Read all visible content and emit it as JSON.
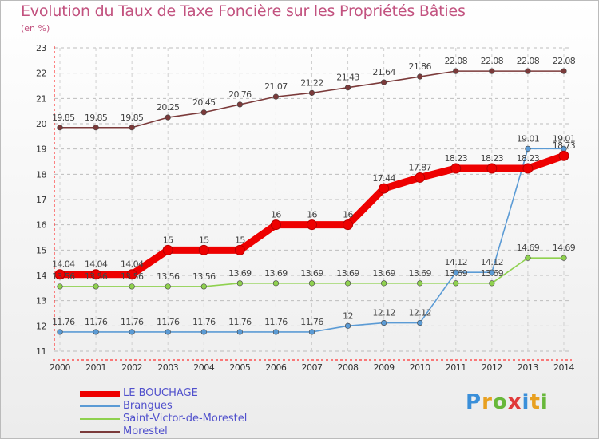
{
  "chart_data": {
    "type": "line",
    "title": "Evolution du Taux de Taxe Foncière sur les Propriétés Bâties",
    "ylabel": "(en %)",
    "categories": [
      "2000",
      "2001",
      "2002",
      "2003",
      "2004",
      "2005",
      "2006",
      "2007",
      "2008",
      "2009",
      "2010",
      "2011",
      "2012",
      "2013",
      "2014"
    ],
    "ylim": [
      11,
      23
    ],
    "yticks": [
      "11",
      "12",
      "13",
      "14",
      "15",
      "16",
      "17",
      "18",
      "19",
      "20",
      "21",
      "22",
      "23"
    ],
    "series": [
      {
        "name": "LE BOUCHAGE",
        "color": "#ee0000",
        "values": [
          14.04,
          14.04,
          14.04,
          15,
          15,
          15,
          16,
          16,
          16,
          17.44,
          17.87,
          18.23,
          18.23,
          18.23,
          18.73
        ],
        "labels": [
          "14.04",
          "14.04",
          "14.04",
          "15",
          "15",
          "15",
          "16",
          "16",
          "16",
          "17.44",
          "17.87",
          "18.23",
          "18.23",
          "18.23",
          "18.73"
        ]
      },
      {
        "name": "Brangues",
        "color": "#5b9bd5",
        "values": [
          11.76,
          11.76,
          11.76,
          11.76,
          11.76,
          11.76,
          11.76,
          11.76,
          12,
          12.12,
          12.12,
          14.12,
          14.12,
          19.01,
          19.01
        ],
        "labels": [
          "11.76",
          "11.76",
          "11.76",
          "11.76",
          "11.76",
          "11.76",
          "11.76",
          "11.76",
          "12",
          "12.12",
          "12.12",
          "14.12",
          "14.12",
          "19.01",
          "19.01"
        ]
      },
      {
        "name": "Saint-Victor-de-Morestel",
        "color": "#8fd14f",
        "values": [
          13.56,
          13.56,
          13.56,
          13.56,
          13.56,
          13.69,
          13.69,
          13.69,
          13.69,
          13.69,
          13.69,
          13.69,
          13.69,
          14.69,
          14.69
        ],
        "labels": [
          "13.56",
          "13.56",
          "13.56",
          "13.56",
          "13.56",
          "13.69",
          "13.69",
          "13.69",
          "13.69",
          "13.69",
          "13.69",
          "13.69",
          "13.69",
          "14.69",
          "14.69"
        ]
      },
      {
        "name": "Morestel",
        "color": "#7b3a3a",
        "values": [
          19.85,
          19.85,
          19.85,
          20.25,
          20.45,
          20.76,
          21.07,
          21.22,
          21.43,
          21.64,
          21.86,
          22.08,
          22.08,
          22.08,
          22.08
        ],
        "labels": [
          "19.85",
          "19.85",
          "19.85",
          "20.25",
          "20.45",
          "20.76",
          "21.07",
          "21.22",
          "21.43",
          "21.64",
          "21.86",
          "22.08",
          "22.08",
          "22.08",
          "22.08"
        ]
      }
    ]
  },
  "logo": {
    "letters": [
      "P",
      "r",
      "o",
      "x",
      "i",
      "t",
      "i"
    ],
    "colors": [
      "#3a8fd9",
      "#e8a020",
      "#68b83a",
      "#e03a3a",
      "#3a8fd9",
      "#e8a020",
      "#68b83a"
    ]
  }
}
